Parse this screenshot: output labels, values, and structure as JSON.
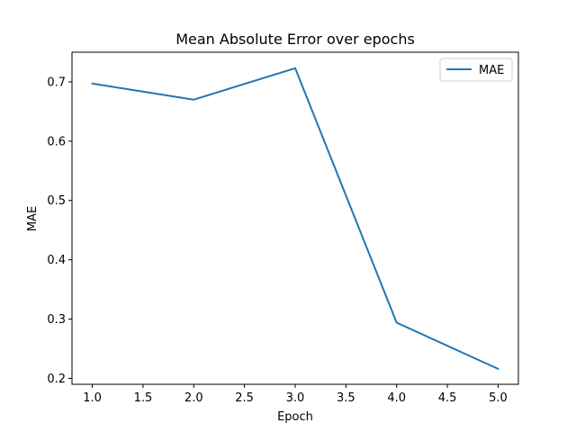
{
  "chart_data": {
    "type": "line",
    "title": "Mean Absolute Error over epochs",
    "xlabel": "Epoch",
    "ylabel": "MAE",
    "xlim": [
      0.8,
      5.2
    ],
    "ylim": [
      0.19,
      0.75
    ],
    "x_ticks": [
      "1.0",
      "1.5",
      "2.0",
      "2.5",
      "3.0",
      "3.5",
      "4.0",
      "4.5",
      "5.0"
    ],
    "y_ticks": [
      "0.2",
      "0.3",
      "0.4",
      "0.5",
      "0.6",
      "0.7"
    ],
    "grid": false,
    "legend_position": "top-right",
    "series": [
      {
        "name": "MAE",
        "color": "#1f77b4",
        "x": [
          1,
          2,
          3,
          4,
          5
        ],
        "y": [
          0.697,
          0.67,
          0.723,
          0.294,
          0.216
        ]
      }
    ]
  }
}
